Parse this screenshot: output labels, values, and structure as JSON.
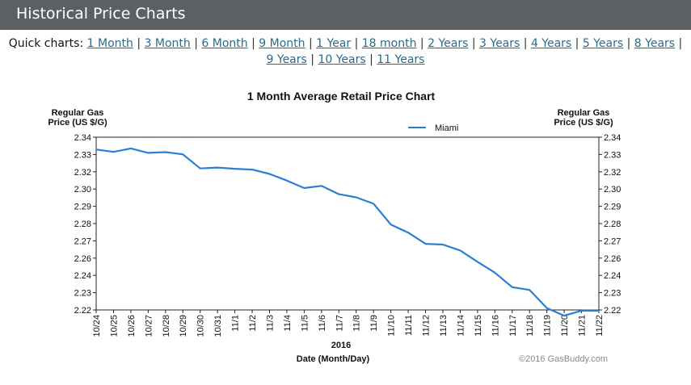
{
  "header": {
    "title": "Historical Price Charts"
  },
  "quick": {
    "label": "Quick charts:",
    "links": [
      "1 Month",
      "3 Month",
      "6 Month",
      "9 Month",
      "1 Year",
      "18 month",
      "2 Years",
      "3 Years",
      "4 Years",
      "5 Years",
      "8 Years",
      "9 Years",
      "10 Years",
      "11 Years"
    ],
    "separator": "|"
  },
  "chart_data": {
    "type": "line",
    "title": "1 Month Average Retail Price Chart",
    "ylabel_left": [
      "Regular Gas",
      "Price (US $/G)"
    ],
    "ylabel_right": [
      "Regular Gas",
      "Price (US $/G)"
    ],
    "xlabel": "Date (Month/Day)",
    "year_label": "2016",
    "credit": "©2016 GasBuddy.com",
    "legend_position": "top",
    "grid": false,
    "ylim": [
      2.22,
      2.34
    ],
    "yticks": [
      "2.34",
      "2.33",
      "2.32",
      "2.30",
      "2.29",
      "2.28",
      "2.27",
      "2.26",
      "2.24",
      "2.23",
      "2.22"
    ],
    "categories": [
      "10/24",
      "10/25",
      "10/26",
      "10/27",
      "10/28",
      "10/29",
      "10/30",
      "10/31",
      "11/1",
      "11/2",
      "11/3",
      "11/4",
      "11/5",
      "11/6",
      "11/7",
      "11/8",
      "11/9",
      "11/10",
      "11/11",
      "11/12",
      "11/13",
      "11/14",
      "11/15",
      "11/16",
      "11/17",
      "11/18",
      "11/19",
      "11/20",
      "11/21",
      "11/22"
    ],
    "series": [
      {
        "name": "Miami",
        "color": "#2a7fd4",
        "values": [
          2.3315,
          2.3298,
          2.3322,
          2.3291,
          2.3296,
          2.3281,
          2.3183,
          2.3189,
          2.3181,
          2.3175,
          2.3145,
          2.3099,
          2.3047,
          2.3062,
          2.3004,
          2.2982,
          2.2938,
          2.2793,
          2.2737,
          2.2659,
          2.2654,
          2.2613,
          2.2534,
          2.2459,
          2.2358,
          2.2339,
          2.2213,
          2.216,
          2.2195,
          2.2195
        ]
      }
    ]
  }
}
